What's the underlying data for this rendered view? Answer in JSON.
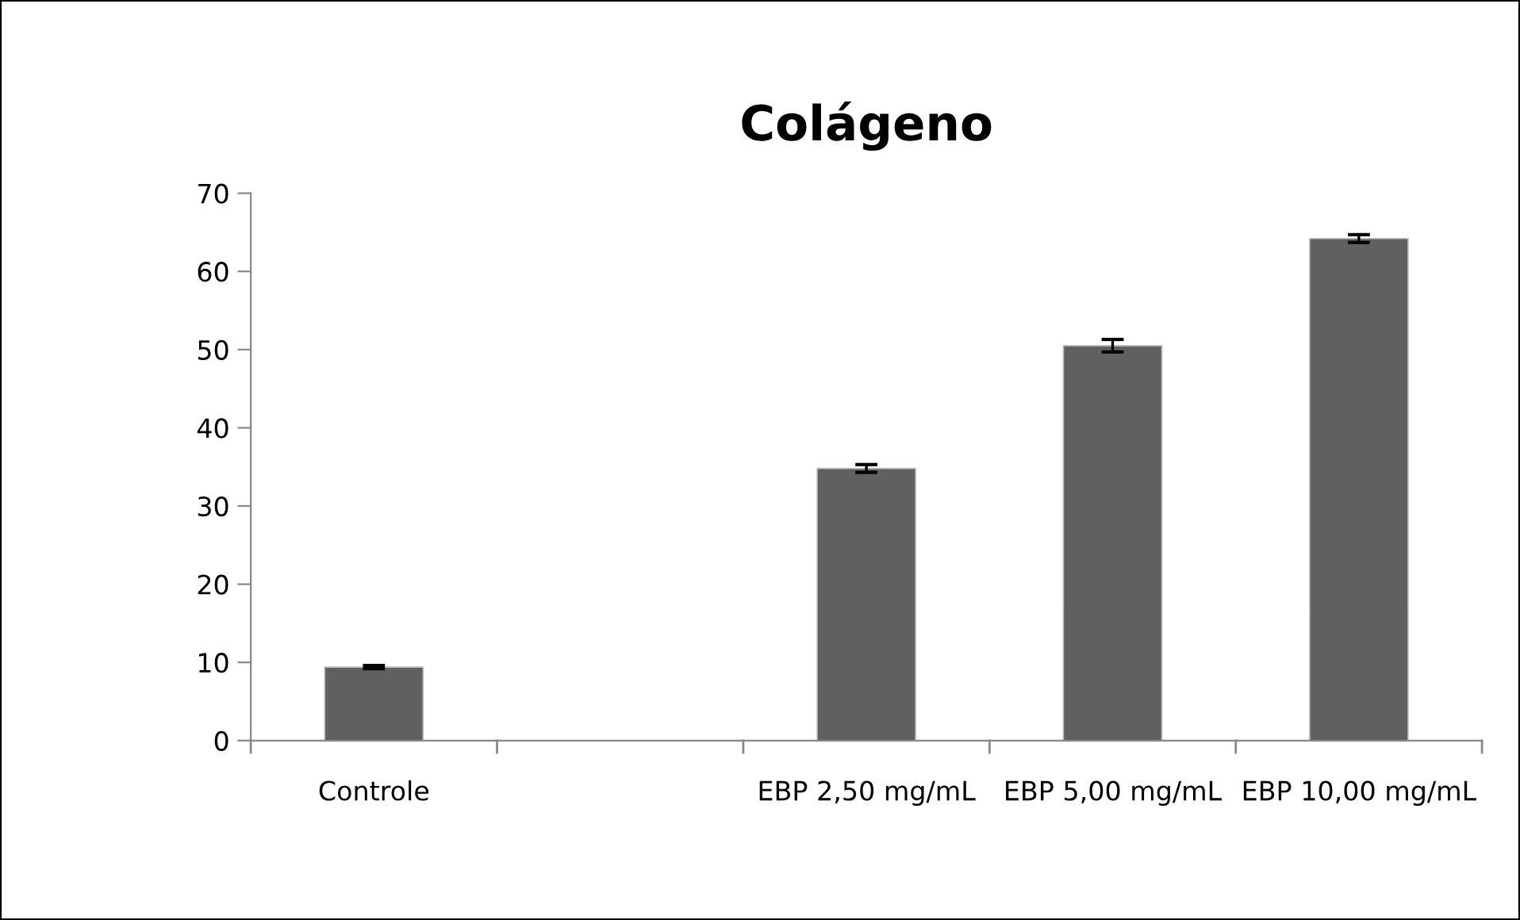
{
  "chart_data": {
    "type": "bar",
    "title": "Colágeno",
    "categories": [
      "Controle",
      null,
      "EBP 2,50 mg/mL",
      "EBP 5,00 mg/mL",
      "EBP 10,00 mg/mL"
    ],
    "values": [
      9.4,
      null,
      34.8,
      50.5,
      64.2
    ],
    "errors": [
      0.2,
      null,
      0.5,
      0.8,
      0.5
    ],
    "color": "#606060",
    "ylim": [
      0,
      70
    ],
    "yticks": [
      0,
      10,
      20,
      30,
      40,
      50,
      60,
      70
    ],
    "grid": false,
    "legend": false
  }
}
